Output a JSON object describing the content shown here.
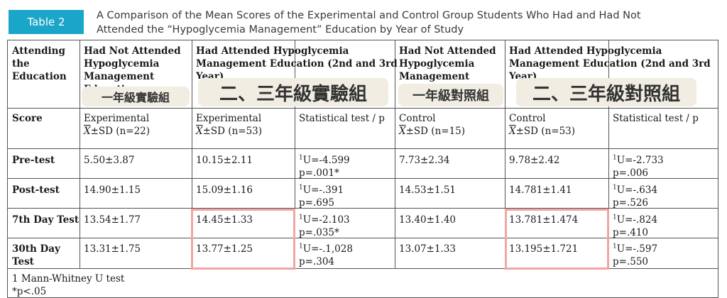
{
  "table": {
    "badge": "Table 2",
    "caption_line1": "A Comparison of the Mean Scores of the Experimental and Control Group Students Who Had and Had Not",
    "caption_line2": "Attended the “Hypoglycemia Management” Education by Year of Study",
    "header": {
      "col0": [
        "Attending",
        "the",
        "Education"
      ],
      "col1": [
        "Had Not Attended",
        "Hypoglycemia",
        "Management",
        "Education"
      ],
      "col2": [
        "Had Attended Hypoglycemia",
        "Management Education (2nd and 3rd",
        "Year)"
      ],
      "col4": [
        "Had Not Attended",
        "Hypoglycemia",
        "Management"
      ],
      "col5": [
        "Had Attended Hypoglycemia",
        "Management Education (2nd and 3rd",
        "Year)"
      ]
    },
    "score_label": "Score",
    "sub": {
      "exp1": "Experimental",
      "exp1_stat": "±SD (n=22)",
      "exp2": "Experimental",
      "exp2_stat": "±SD (n=53)",
      "stat1": "Statistical test / p",
      "ctl1": "Control",
      "ctl1_stat": "±SD (n=15)",
      "ctl2": "Control",
      "ctl2_stat": "±SD (n=53)",
      "stat2": "Statistical test / p",
      "xbar": "X"
    },
    "rows": [
      {
        "label": [
          "Pre-test"
        ],
        "c1": "5.50±3.87",
        "c2": "10.15±2.11",
        "t1u": "U=-4.599",
        "t1p": "p=.001*",
        "c4": "7.73±2.34",
        "c5": "9.78±2.42",
        "t2u": "U=-2.733",
        "t2p": "p=.006"
      },
      {
        "label": [
          "Post-test"
        ],
        "c1": "14.90±1.15",
        "c2": "15.09±1.16",
        "t1u": "U=-.391",
        "t1p": "p=.695",
        "c4": "14.53±1.51",
        "c5": "14.781±1.41",
        "t2u": "U=-.634",
        "t2p": "p=.526"
      },
      {
        "label": [
          "7th Day Test"
        ],
        "c1": "13.54±1.77",
        "c2": "14.45±1.33",
        "t1u": "U=-2.103",
        "t1p": "p=.035*",
        "c4": "13.40±1.40",
        "c5": "13.781±1.474",
        "t2u": "U=-.824",
        "t2p": "p=.410"
      },
      {
        "label": [
          "30th Day",
          "Test"
        ],
        "c1": "13.31±1.75",
        "c2": "13.77±1.25",
        "t1u": "U=-.1,028",
        "t1p": "p=.304",
        "c4": "13.07±1.33",
        "c5": "13.195±1.721",
        "t2u": "U=-.597",
        "t2p": "p=.550"
      }
    ],
    "sup_marker": "1",
    "footnote1": "1 Mann-Whitney U test",
    "footnote2": "*p<.05"
  },
  "overlays": {
    "label1": "一年級實驗組",
    "label2": "二、三年級實驗組",
    "label3": "一年級對照組",
    "label4": "二、三年級對照組"
  },
  "colors": {
    "badge": "#1aa6c9",
    "overlay_bg": "#f1ede2",
    "highlight": "#f3a5a5"
  }
}
